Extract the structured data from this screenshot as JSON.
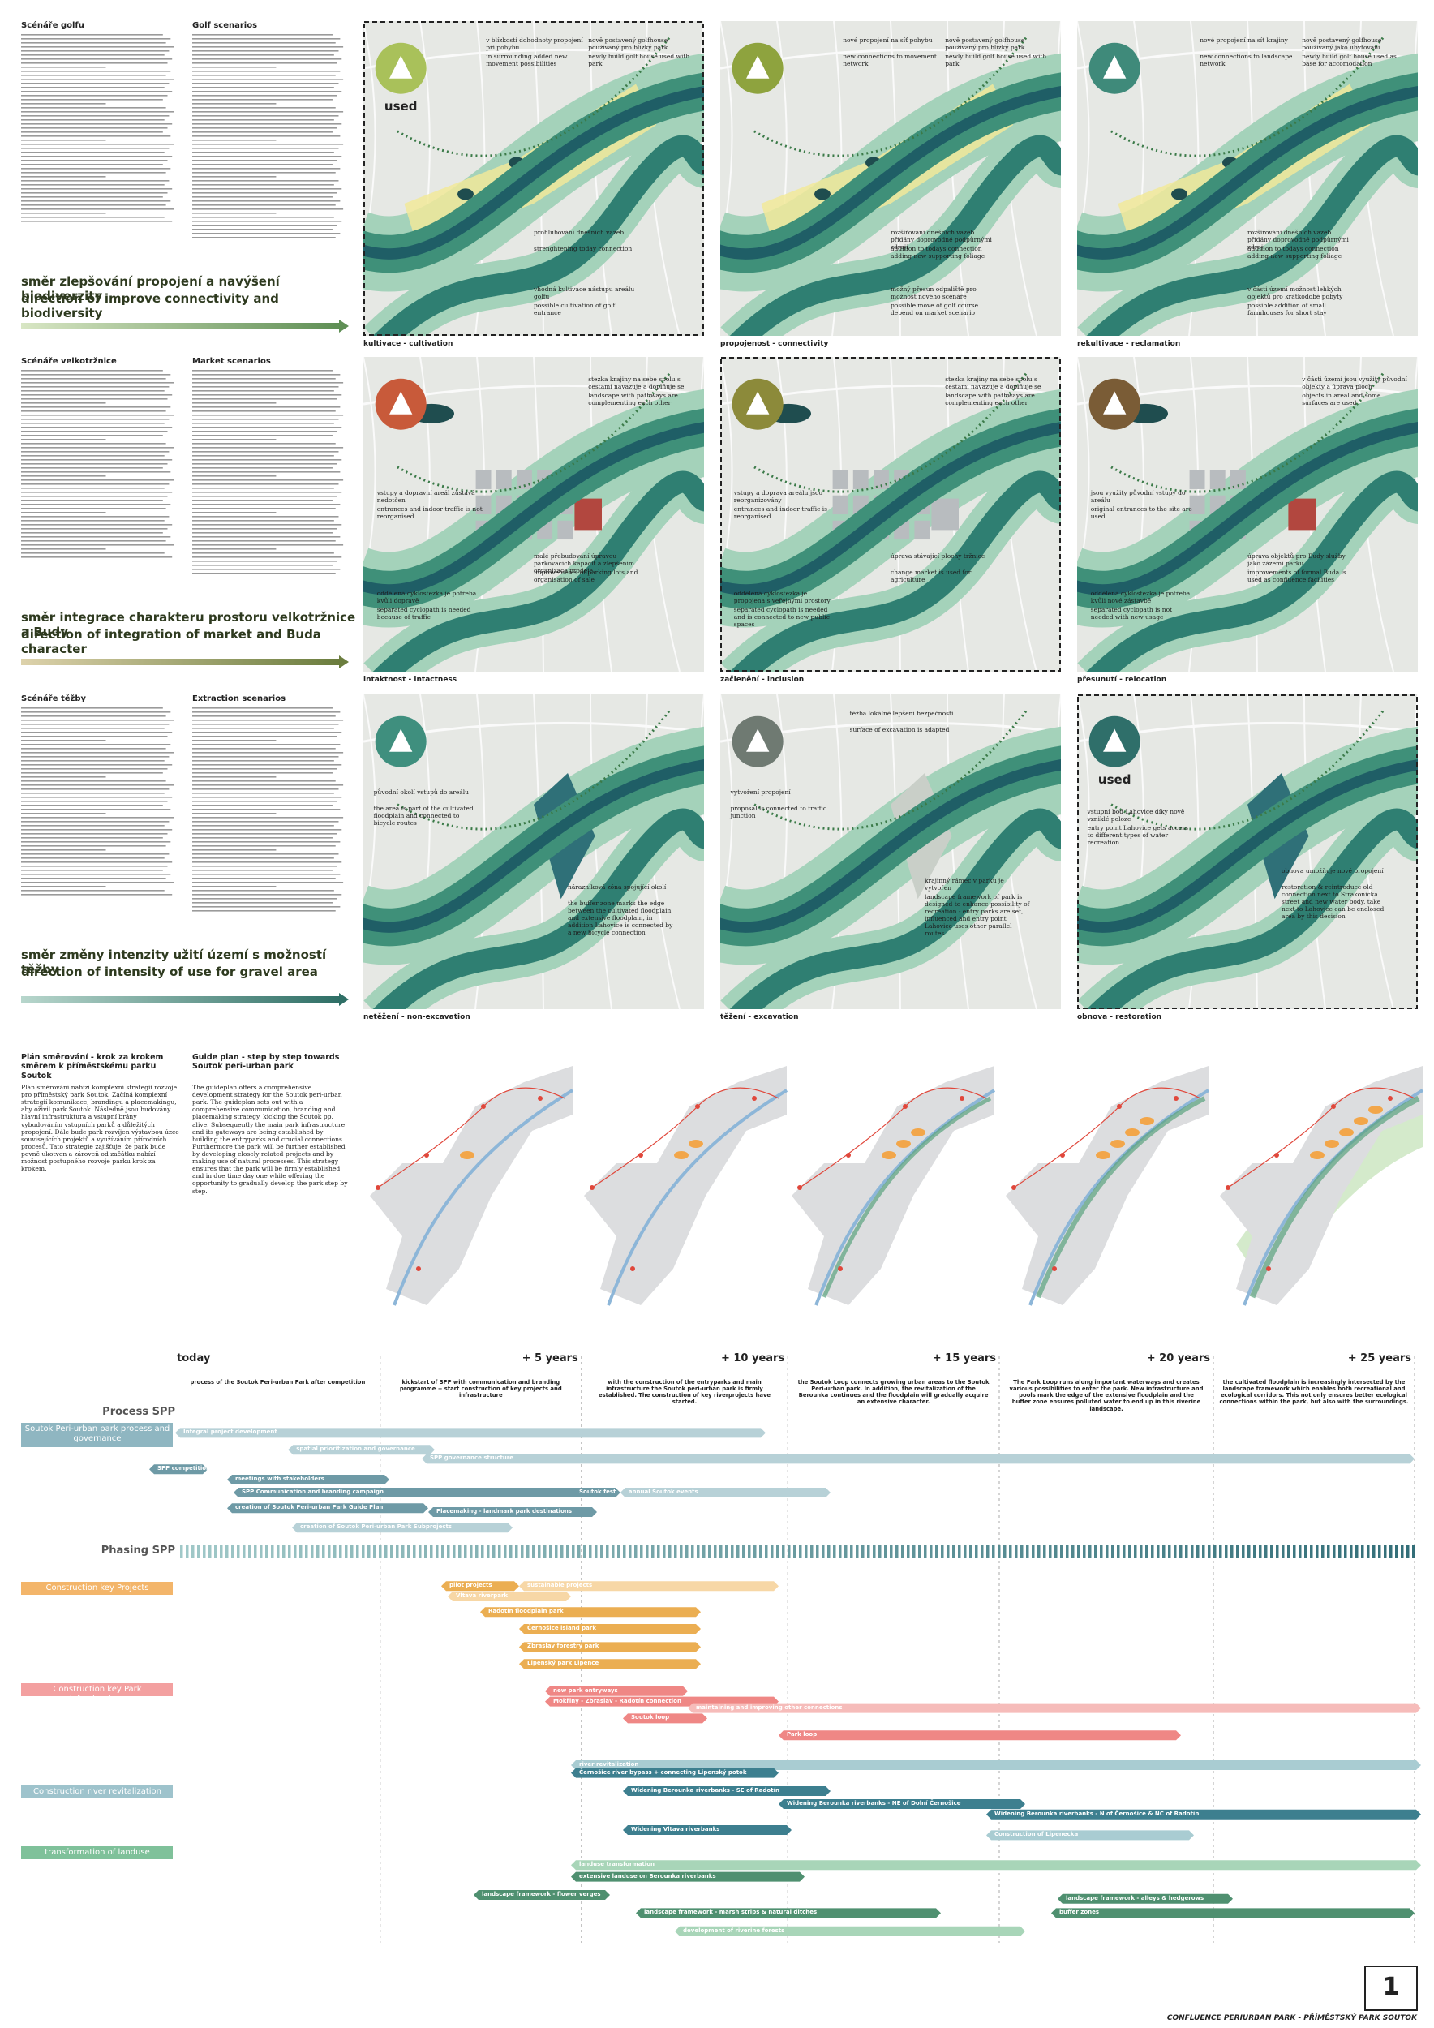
{
  "scenarios": [
    {
      "title_cz": "Scénáře golfu",
      "title_en": "Golf scenarios",
      "heading_cz": "směr zlepšování propojení a navýšení biodiverzity",
      "heading_en": "direction of improve connectivity and biodiversity",
      "panels": [
        {
          "label": "kultivace - cultivation",
          "badge": "used",
          "notes": [
            {
              "cz": "v blízkosti dohodnoty propojení při pohybu",
              "en": "in surrounding added new movement possibilities"
            },
            {
              "cz": "nově postavený golfhouse používaný pro blízký park",
              "en": "newly build golf house used with park"
            },
            {
              "cz": "prohlubování dnešních vazeb",
              "en": "strenghtening today connection"
            },
            {
              "cz": "vhodná kultivace nástupu areálu golfu",
              "en": "possible cultivation of golf entrance"
            }
          ]
        },
        {
          "label": "propojenost - connectivity",
          "notes": [
            {
              "cz": "nové propojení na síť pohybu",
              "en": "new connections to movement network"
            },
            {
              "cz": "nově postavený golfhouse používaný pro blízký park",
              "en": "newly build golf house used with park"
            },
            {
              "cz": "rozšiřování dnešních vazeb přidány doprovodné podpůrnými zdroji",
              "en": "addition to todays connection adding new supporting foliage"
            },
            {
              "cz": "možný přesun odpaliště pro možnost nového scénáře",
              "en": "possible move of golf course depend on market scenario"
            }
          ]
        },
        {
          "label": "rekultivace - reclamation",
          "notes": [
            {
              "cz": "nové propojení na síť krajiny",
              "en": "new connections to landscape network"
            },
            {
              "cz": "nově postavený golfhouse používaný jako ubytování",
              "en": "newly build golf house used as base for accomodation"
            },
            {
              "cz": "rozšiřování dnešních vazeb přidány doprovodné podpůrnými zdroji",
              "en": "addition to todays connection adding new supporting foliage"
            },
            {
              "cz": "v části území možnost lehkých objektů pro krátkodobé pobyty",
              "en": "possible addition of small farmhouses for short stay"
            }
          ]
        }
      ]
    },
    {
      "title_cz": "Scénáře velkotržnice",
      "title_en": "Market scenarios",
      "heading_cz": "směr integrace charakteru prostoru velkotržnice a Budy",
      "heading_en": "direction of integration of market and Buda character",
      "panels": [
        {
          "label": "intaktnost - intactness",
          "notes": [
            {
              "cz": "stezka krajiny na sebe spolu s cestami navazuje a doplňuje se",
              "en": "landscape with pathways are complementing each other"
            },
            {
              "cz": "vstupy a dopravní areál zůstává nedotčen",
              "en": "entrances and indoor traffic is not reorganised"
            },
            {
              "cz": "oddělená cyklostezka je potřeba kvůli dopravě",
              "en": "separated cyclopath is needed because of traffic"
            },
            {
              "cz": "malé přebudování úpravou parkovacích kapacit a zlepšením organizace prodeje",
              "en": "improvements of parking lots and organisation of sale"
            }
          ]
        },
        {
          "label": "začlenění - inclusion",
          "notes": [
            {
              "cz": "stezka krajiny na sebe spolu s cestami navazuje a doplňuje se",
              "en": "landscape with pathways are complementing each other"
            },
            {
              "cz": "vstupy a doprava areálu jsou reorganizovány",
              "en": "entrances and indoor traffic is reorganised"
            },
            {
              "cz": "oddělená cyklostezka je propojena s veřejnými prostory",
              "en": "separated cyclopath is needed and is connected to new public spaces"
            },
            {
              "cz": "úprava stávající plochy tržnice",
              "en": "change market is used for agriculture"
            }
          ]
        },
        {
          "label": "přesunutí - relocation",
          "notes": [
            {
              "cz": "v části území jsou využity původní objekty a úprava ploch",
              "en": "objects in areal and some surfaces are used"
            },
            {
              "cz": "jsou využity původní vstupy do areálu",
              "en": "original entrances to the site are used"
            },
            {
              "cz": "oddělená cyklostezka je potřeba kvůli nové zástavbě",
              "en": "separated cyclopath is not needed with new usage"
            },
            {
              "cz": "úprava objektů pro Budy služby jako zázemí parku",
              "en": "improvements of formal Buda is used as confluence facilities"
            }
          ]
        }
      ]
    },
    {
      "title_cz": "Scénáře těžby",
      "title_en": "Extraction scenarios",
      "heading_cz": "směr změny intenzity užití území s možností těžby",
      "heading_en": "direction of intensity of use for gravel area",
      "panels": [
        {
          "label": "netěžení - non-excavation",
          "notes": [
            {
              "cz": "původní okolí vstupů do areálu",
              "en": "the area is part of the cultivated floodplain and connected to bicycle routes"
            },
            {
              "cz": "nárazníková zóna spojující okolí",
              "en": "the buffer zone marks the edge between the cultivated floodplain and extensive floodplain, in addition Lahovice is connected by a new bicycle connection"
            }
          ]
        },
        {
          "label": "těžení - excavation",
          "notes": [
            {
              "cz": "těžba lokálně lepšení bezpečnosti",
              "en": "surface of excavation is adapted"
            },
            {
              "cz": "vytvoření propojení",
              "en": "proposal is connected to traffic junction"
            },
            {
              "cz": "krajinný rámec v parku je vytvořen",
              "en": "landscape framework of park is designed to enhance possibility of recreation - entry parks are set, influenced and entry point Lahovice uses other parallel routes"
            }
          ]
        },
        {
          "label": "obnova - restoration",
          "badge": "used",
          "notes": [
            {
              "cz": "vstupní bod Lahovice díky nově vzniklé poloze",
              "en": "entry point Lahovice gets access to different types of water recreation"
            },
            {
              "cz": "obnova umožňuje nové propojení",
              "en": "restoration & reintroduce old connection next to Strakonická street and new water body, take next to Lahovice can be enclosed area by this decision"
            }
          ]
        }
      ]
    }
  ],
  "guide_plan": {
    "title_cz": "Plán směrování - krok za krokem směrem k příměstskému parku Soutok",
    "title_en": "Guide plan - step by step towards Soutok peri-urban park",
    "text_cz": "Plán směrování nabízí komplexní strategii rozvoje pro příměstský park Soutok. Začíná komplexní strategií komunikace, brandingu a placemakingu, aby oživil park Soutok. Následně jsou budovány hlavní infrastruktura a vstupní brány vybudováním vstupních parků a důležitých propojení. Dále bude park rozvíjen výstavbou úzce souvisejících projektů a využíváním přírodních procesů. Tato strategie zajišťuje, že park bude pevně ukotven a zároveň od začátku nabízí možnost postupného rozvoje parku krok za krokem.",
    "text_en": "The guideplan offers a comprehensive development strategy for the Soutok peri-urban park. The guideplan sets out with a comprehensive communication, branding and placemaking strategy, kicking the Soutok pp. alive. Subsequently the main park infrastructure and its gateways are being established by building the entryparks and crucial connections. Furthermore the park will be further established by developing closely related projects and by making use of natural processes. This strategy ensures that the park will be firmly established and in due time day one while offering the opportunity to gradually develop the park step by step."
  },
  "timeline": {
    "periods": [
      "today",
      "+ 5 years",
      "+ 10 years",
      "+ 15 years",
      "+ 20 years",
      "+ 25 years"
    ],
    "notes": [
      "process of the Soutok Peri-urban Park after competition",
      "kickstart of SPP with communication and branding programme + start construction of key projects and infrastructure",
      "with the construction of the entryparks and main infrastructure the Soutok peri-urban park is firmly established. The construction of key riverprojects have started.",
      "the Soutok Loop connects growing urban areas to the Soutok Peri-urban park. In addition, the revitalization of the Berounka continues and the floodplain will gradually acquire an extensive character.",
      "The Park Loop runs along important waterways and creates various possibilities to enter the park. New infrastructure and pools mark the edge of the extensive floodplain and the buffer zone ensures polluted water to end up in this riverine landscape.",
      "the cultivated floodplain is increasingly intersected by the landscape framework which enables both recreational and ecological corridors. This not only ensures better ecological connections within the park, but also with the surroundings."
    ],
    "process_label": "Process SPP",
    "phasing_label": "Phasing SPP",
    "groups": [
      {
        "label": "Soutok Peri-urban park process and governance",
        "bars": [
          "Integral project development",
          "spatial prioritization and governance",
          "SPP competition",
          "SPP governance structure",
          "meetings with stakeholders",
          "SPP Communication and branding campaign",
          "Soutok fest",
          "annual Soutok events",
          "creation of Soutok Peri-urban Park Guide Plan",
          "Placemaking - landmark park destinations",
          "creation of Soutok Peri-urban Park Subprojects"
        ]
      },
      {
        "label": "Construction key Projects",
        "bars": [
          "pilot projects",
          "sustainable projects",
          "Vltava riverpark",
          "Radotín floodplain park",
          "Černošice island park",
          "Zbraslav forestry park",
          "Lipenský park Lipence"
        ]
      },
      {
        "label": "Construction key Park infrastructure",
        "bars": [
          "new park entryways",
          "Mokřiny - Zbraslav - Radotín connection",
          "maintaining and improving other connections",
          "Soutok loop",
          "Park loop"
        ]
      },
      {
        "label": "Construction river revitalization",
        "bars": [
          "river revitalization",
          "Černošice river bypass + connecting Lipenský potok",
          "Widening Berounka riverbanks - SE of Radotín",
          "Widening Berounka riverbanks - NE of Dolní Černošice",
          "Widening Berounka riverbanks - N of Černošice & NC of Radotín",
          "Widening Vltava riverbanks",
          "Construction of Lipenecka"
        ]
      },
      {
        "label": "transformation of landuse",
        "bars": [
          "landuse transformation",
          "extensive landuse on Berounka riverbanks",
          "landscape framework - flower verges",
          "landscape framework - alleys & hedgerows",
          "landscape framework - marsh strips & natural ditches",
          "buffer zones",
          "development of riverine forests"
        ]
      }
    ]
  },
  "footer": {
    "page": "1",
    "caption": "CONFLUENCE PERIURBAN PARK - PŘÍMĚSTSKÝ PARK SOUTOK"
  }
}
